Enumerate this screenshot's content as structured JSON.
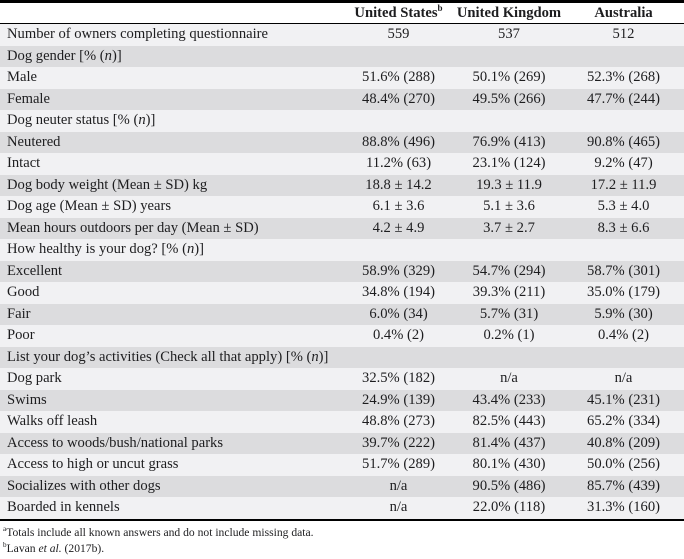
{
  "table": {
    "header": {
      "row_label_header": "",
      "columns": [
        {
          "label": "United States",
          "marker": "b"
        },
        {
          "label": "United Kingdom",
          "marker": ""
        },
        {
          "label": "Australia",
          "marker": ""
        }
      ]
    },
    "rows": [
      {
        "type": "data",
        "label": "Number of owners completing questionnaire",
        "values": [
          "559",
          "537",
          "512"
        ]
      },
      {
        "type": "section",
        "label": "Dog gender [% (n)]",
        "values": [
          "",
          "",
          ""
        ]
      },
      {
        "type": "data",
        "label": "Male",
        "values": [
          "51.6% (288)",
          "50.1% (269)",
          "52.3% (268)"
        ]
      },
      {
        "type": "data",
        "label": "Female",
        "values": [
          "48.4% (270)",
          "49.5% (266)",
          "47.7% (244)"
        ]
      },
      {
        "type": "section",
        "label": "Dog neuter status [% (n)]",
        "values": [
          "",
          "",
          ""
        ]
      },
      {
        "type": "data",
        "label": "Neutered",
        "values": [
          "88.8% (496)",
          "76.9% (413)",
          "90.8% (465)"
        ]
      },
      {
        "type": "data",
        "label": "Intact",
        "values": [
          "11.2% (63)",
          "23.1% (124)",
          "9.2% (47)"
        ]
      },
      {
        "type": "data",
        "label": "Dog body weight (Mean ± SD) kg",
        "values": [
          "18.8 ± 14.2",
          "19.3 ± 11.9",
          "17.2 ± 11.9"
        ]
      },
      {
        "type": "data",
        "label": "Dog age (Mean ± SD) years",
        "values": [
          "6.1 ± 3.6",
          "5.1 ± 3.6",
          "5.3 ± 4.0"
        ]
      },
      {
        "type": "data",
        "label": "Mean hours outdoors per day (Mean ± SD)",
        "values": [
          "4.2 ± 4.9",
          "3.7 ± 2.7",
          "8.3 ± 6.6"
        ]
      },
      {
        "type": "section",
        "label": "How healthy is your dog? [% (n)]",
        "values": [
          "",
          "",
          ""
        ]
      },
      {
        "type": "data",
        "label": "Excellent",
        "values": [
          "58.9% (329)",
          "54.7% (294)",
          "58.7% (301)"
        ]
      },
      {
        "type": "data",
        "label": "Good",
        "values": [
          "34.8% (194)",
          "39.3% (211)",
          "35.0% (179)"
        ]
      },
      {
        "type": "data",
        "label": "Fair",
        "values": [
          "6.0% (34)",
          "5.7% (31)",
          "5.9% (30)"
        ]
      },
      {
        "type": "data",
        "label": "Poor",
        "values": [
          "0.4% (2)",
          "0.2% (1)",
          "0.4% (2)"
        ]
      },
      {
        "type": "section",
        "label": "List your dog’s activities (Check all that apply) [% (n)]",
        "values": [
          "",
          "",
          ""
        ]
      },
      {
        "type": "data",
        "label": "Dog park",
        "values": [
          "32.5% (182)",
          "n/a",
          "n/a"
        ]
      },
      {
        "type": "data",
        "label": "Swims",
        "values": [
          "24.9% (139)",
          "43.4% (233)",
          "45.1% (231)"
        ]
      },
      {
        "type": "data",
        "label": "Walks off leash",
        "values": [
          "48.8% (273)",
          "82.5% (443)",
          "65.2% (334)"
        ]
      },
      {
        "type": "data",
        "label": "Access to woods/bush/national parks",
        "values": [
          "39.7% (222)",
          "81.4% (437)",
          "40.8% (209)"
        ]
      },
      {
        "type": "data",
        "label": "Access to high or uncut grass",
        "values": [
          "51.7% (289)",
          "80.1% (430)",
          "50.0% (256)"
        ]
      },
      {
        "type": "data",
        "label": "Socializes with other dogs",
        "values": [
          "n/a",
          "90.5% (486)",
          "85.7% (439)"
        ]
      },
      {
        "type": "data",
        "label": "Boarded in kennels",
        "values": [
          "n/a",
          "22.0% (118)",
          "31.3% (160)"
        ]
      }
    ]
  },
  "footnotes": [
    {
      "marker": "a",
      "text": "Totals include all known answers and do not include missing data."
    },
    {
      "marker": "b",
      "text": "Lavan et al. (2017b)."
    }
  ],
  "colors": {
    "row_light": "#f1f1f3",
    "row_shaded": "#dcdcde",
    "rule": "#000000",
    "text": "#1d1d1f"
  }
}
